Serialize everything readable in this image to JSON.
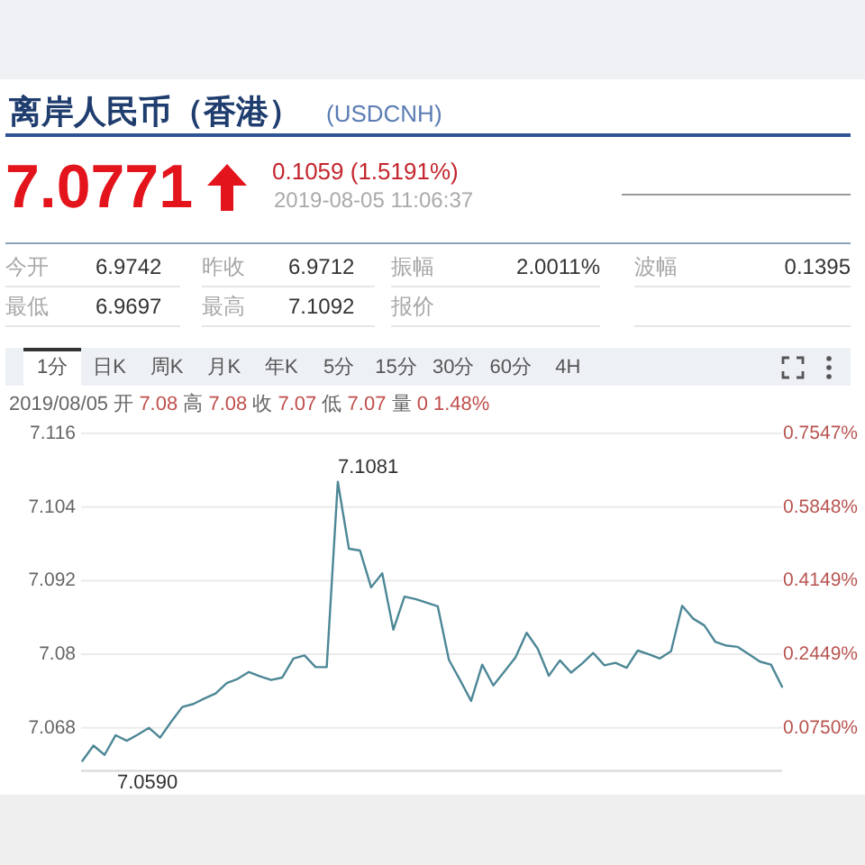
{
  "chart_data": [
    {
      "type": "other",
      "title": "离岸人民币（香港）",
      "subtitle": "(USDCNH)",
      "annotations": [
        "7.0771",
        "0.1059 (1.5191%)",
        "2019-08-05 11:06:37",
        "今开",
        "6.9742",
        "昨收",
        "6.9712",
        "振幅",
        "2.0011%",
        "波幅",
        "0.1395",
        "最低",
        "6.9697",
        "最高",
        "7.1092",
        "报价"
      ]
    },
    {
      "type": "other",
      "annotations": [
        "1分",
        "日K",
        "周K",
        "月K",
        "年K",
        "5分",
        "15分",
        "30分",
        "60分",
        "4H"
      ]
    },
    {
      "type": "line",
      "subtitle": "2019/08/05 开 7.08 高 7.08 收 7.07 低 7.07 量 0 1.48%",
      "categories": [
        null,
        null,
        null,
        null,
        null,
        null,
        null,
        null,
        null,
        null,
        null,
        null,
        null,
        null,
        null,
        null,
        null,
        null,
        null,
        null,
        null,
        null,
        null,
        null,
        null,
        null,
        null,
        null,
        null,
        null,
        null,
        null,
        null,
        null,
        null,
        null,
        null,
        null,
        null,
        null,
        null,
        null,
        null,
        null,
        null,
        null,
        null,
        null,
        null,
        null,
        null,
        null,
        null,
        null,
        null,
        null,
        null,
        null,
        null,
        null,
        null,
        null,
        null,
        null
      ],
      "values": [
        7.0626,
        7.0651,
        7.0636,
        7.0668,
        7.0659,
        7.0669,
        7.068,
        7.0664,
        7.069,
        7.0714,
        7.0719,
        7.0728,
        7.0736,
        7.0753,
        7.076,
        7.0771,
        7.0764,
        7.0758,
        7.0762,
        7.0793,
        7.0798,
        7.0779,
        7.0779,
        7.1081,
        7.0972,
        7.0969,
        7.0909,
        7.0932,
        7.084,
        7.0894,
        7.089,
        7.0884,
        7.0878,
        7.0791,
        7.0758,
        7.0724,
        7.0783,
        7.0749,
        7.0772,
        7.0795,
        7.0835,
        7.0809,
        7.0765,
        7.079,
        7.077,
        7.0785,
        7.0802,
        7.0782,
        7.0786,
        7.0778,
        7.0806,
        7.08,
        7.0793,
        7.0805,
        7.0879,
        7.0858,
        7.0847,
        7.082,
        7.0814,
        7.0812,
        7.08,
        7.0788,
        7.0783,
        7.0747
      ],
      "color": "#4d8796",
      "ylim": [
        7.061,
        7.116
      ],
      "yticks": [
        7.068,
        7.08,
        7.092,
        7.104,
        7.116
      ],
      "y2lim": [
        -0.0241,
        0.7547
      ],
      "y2ticks": [
        {
          "value": 0.075,
          "label": "0.0750%"
        },
        {
          "value": 0.2449,
          "label": "0.2449%"
        },
        {
          "value": 0.4149,
          "label": "0.4149%"
        },
        {
          "value": 0.5848,
          "label": "0.5848%"
        },
        {
          "value": 0.7547,
          "label": "0.7547%"
        }
      ],
      "grid": "y",
      "annotations": [
        "7.1081",
        "7.0590"
      ]
    }
  ]
}
